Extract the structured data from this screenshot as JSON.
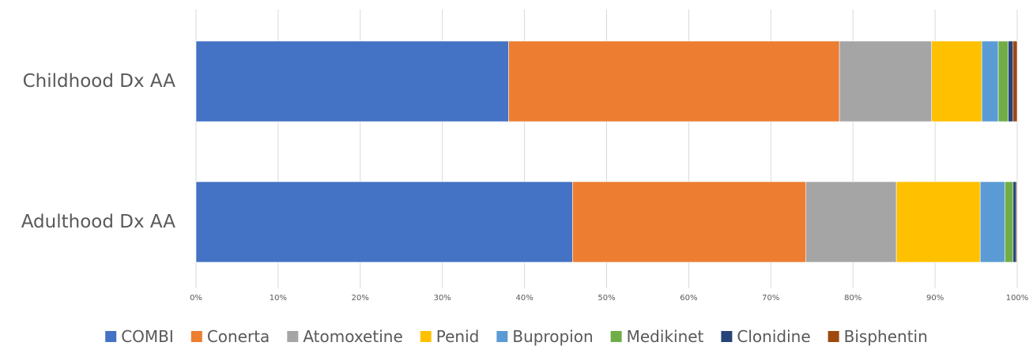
{
  "chart_data": {
    "type": "bar",
    "orientation": "horizontal",
    "stacked": "percent",
    "title": "",
    "xlabel": "",
    "ylabel": "",
    "xlim": [
      0,
      100
    ],
    "categories": [
      "Childhood Dx AA",
      "Adulthood Dx AA"
    ],
    "x_ticks": [
      "0%",
      "10%",
      "20%",
      "30%",
      "40%",
      "50%",
      "60%",
      "70%",
      "80%",
      "90%",
      "100%"
    ],
    "grid": "vertical",
    "legend_position": "bottom",
    "series": [
      {
        "name": "COMBI",
        "color": "#4472C4",
        "values": [
          38.0,
          45.8
        ]
      },
      {
        "name": "Conerta",
        "color": "#ED7D31",
        "values": [
          40.2,
          28.4
        ]
      },
      {
        "name": "Atomoxetine",
        "color": "#A5A5A5",
        "values": [
          11.2,
          11.0
        ]
      },
      {
        "name": "Penid",
        "color": "#FFC000",
        "values": [
          6.1,
          10.2
        ]
      },
      {
        "name": "Bupropion",
        "color": "#5B9BD5",
        "values": [
          2.0,
          3.0
        ]
      },
      {
        "name": "Medikinet",
        "color": "#70AD47",
        "values": [
          1.2,
          1.0
        ]
      },
      {
        "name": "Clonidine",
        "color": "#264478",
        "values": [
          0.6,
          0.4
        ]
      },
      {
        "name": "Bisphentin",
        "color": "#9E480E",
        "values": [
          0.5,
          0.1
        ]
      }
    ]
  }
}
